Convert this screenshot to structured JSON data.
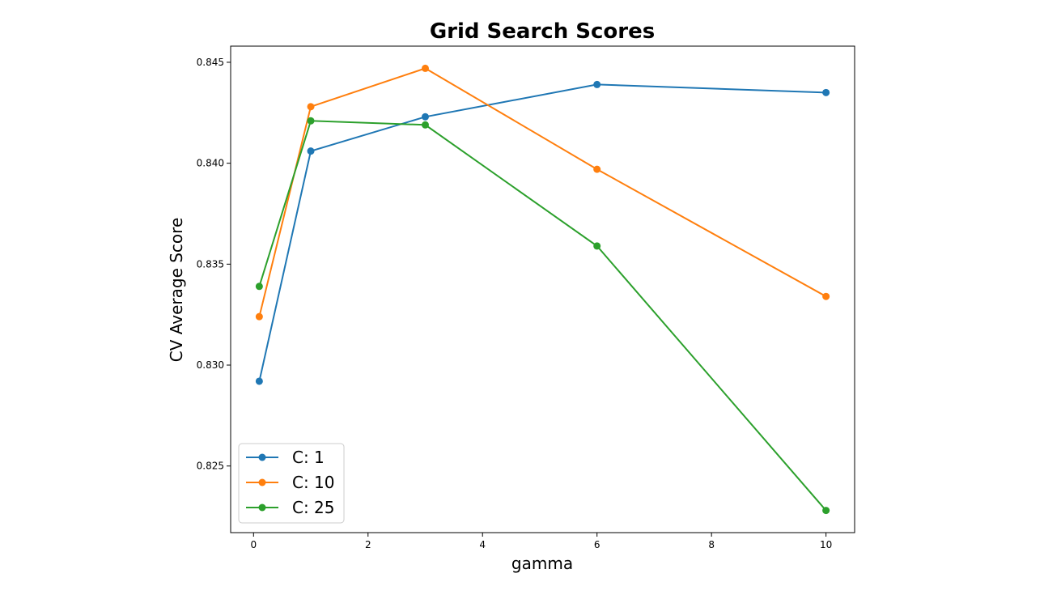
{
  "chart_data": {
    "type": "line",
    "title": "Grid Search Scores",
    "xlabel": "gamma",
    "ylabel": "CV Average Score",
    "xlim": [
      -0.4,
      10.5
    ],
    "ylim": [
      0.8217,
      0.8458
    ],
    "xticks": [
      0,
      2,
      4,
      6,
      8,
      10
    ],
    "xtick_labels": [
      "0",
      "2",
      "4",
      "6",
      "8",
      "10"
    ],
    "yticks": [
      0.825,
      0.83,
      0.835,
      0.84,
      0.845
    ],
    "ytick_labels": [
      "0.825",
      "0.830",
      "0.835",
      "0.840",
      "0.845"
    ],
    "grid": false,
    "legend_position": "lower-left",
    "x": [
      0.1,
      1,
      3,
      6,
      10
    ],
    "series": [
      {
        "name": "C: 1",
        "color": "#1f77b4",
        "values": [
          0.8292,
          0.8406,
          0.8423,
          0.8439,
          0.8435
        ]
      },
      {
        "name": "C: 10",
        "color": "#ff7f0e",
        "values": [
          0.8324,
          0.8428,
          0.8447,
          0.8397,
          0.8334
        ]
      },
      {
        "name": "C: 25",
        "color": "#2ca02c",
        "values": [
          0.8339,
          0.8421,
          0.8419,
          0.8359,
          0.8228
        ]
      }
    ]
  }
}
